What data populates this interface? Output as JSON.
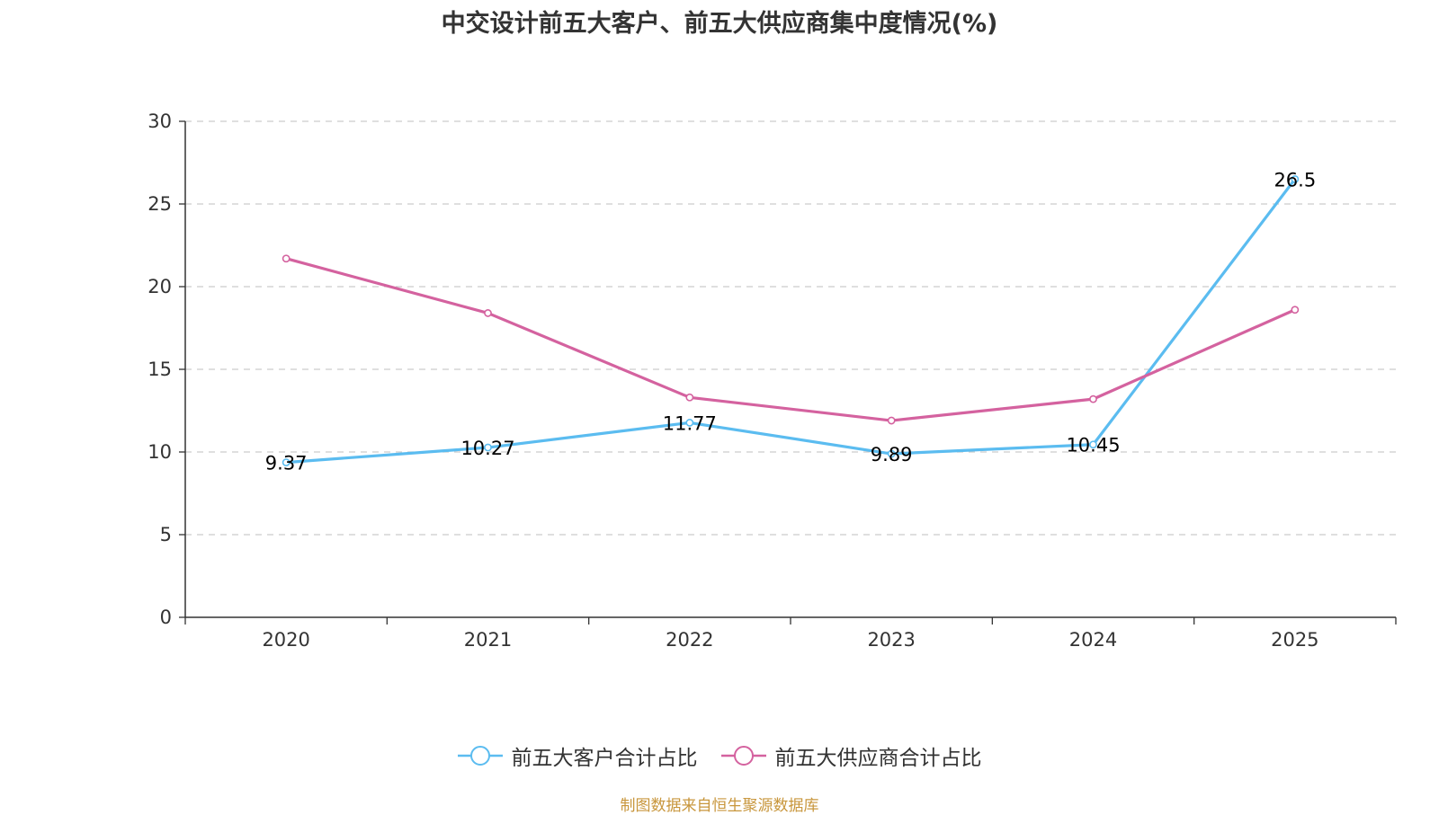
{
  "chart_data": {
    "type": "line",
    "title": "中交设计前五大客户、前五大供应商集中度情况(%)",
    "categories": [
      "2020",
      "2021",
      "2022",
      "2023",
      "2024",
      "2025"
    ],
    "ylim": [
      0,
      30
    ],
    "yticks": [
      0,
      5,
      10,
      15,
      20,
      25,
      30
    ],
    "grid": true,
    "legend_position": "bottom",
    "series": [
      {
        "name": "前五大客户合计占比",
        "color": "#5bbcf0",
        "values": [
          9.37,
          10.27,
          11.77,
          9.89,
          10.45,
          26.5
        ],
        "labels": [
          "9.37",
          "10.27",
          "11.77",
          "9.89",
          "10.45",
          "26.5"
        ],
        "show_labels": true
      },
      {
        "name": "前五大供应商合计占比",
        "color": "#d4629f",
        "values": [
          21.7,
          18.4,
          13.3,
          11.9,
          13.2,
          18.6
        ],
        "show_labels": false
      }
    ]
  },
  "source": "制图数据来自恒生聚源数据库"
}
